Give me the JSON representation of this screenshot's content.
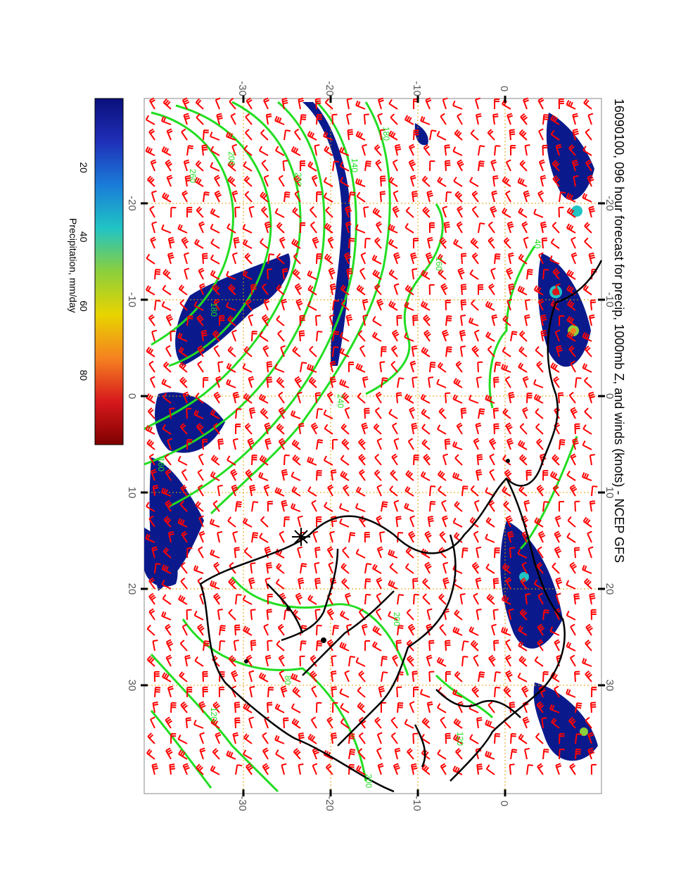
{
  "title": "16090100, 096 hour forecast for precip, 1000mb Z, and winds (knots) - NCEP GFS",
  "colorbar": {
    "label": "Precipitation, mm/day",
    "ticks": [
      "20",
      "40",
      "60",
      "80"
    ],
    "range": [
      0,
      100
    ],
    "colors": [
      "#7f0000",
      "#d7191c",
      "#f58220",
      "#e8d400",
      "#8ccf3c",
      "#20c4c4",
      "#1a7cd8",
      "#1f2fb8",
      "#0a0f7a"
    ]
  },
  "axes": {
    "lon_ticks": [
      "-20",
      "-10",
      "0",
      "10",
      "20",
      "30"
    ],
    "lat_ticks": [
      "-30",
      "-20",
      "-10",
      "0"
    ]
  },
  "contour_labels": [
    "180",
    "260",
    "200",
    "220",
    "140",
    "160",
    "240",
    "180",
    "160",
    "120",
    "200",
    "40",
    "80",
    "120",
    "200"
  ],
  "colors": {
    "contour": "#22dd22",
    "barb": "#ff0000",
    "grid": "#e0a000",
    "coast": "#000000",
    "precip": "#0a1a8c"
  },
  "marker": "*"
}
